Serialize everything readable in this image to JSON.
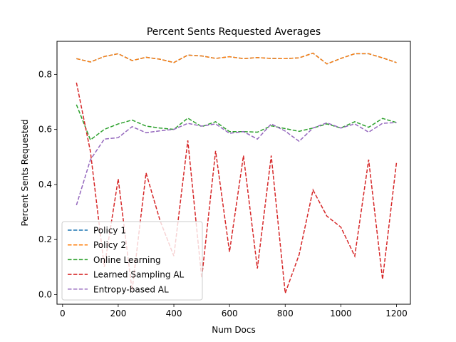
{
  "chart_data": {
    "type": "line",
    "title": "Percent Sents Requested Averages",
    "xlabel": "Num Docs",
    "ylabel": "Percent Sents Requested",
    "xlim": [
      -20,
      1250
    ],
    "ylim": [
      -0.035,
      0.92
    ],
    "xticks": [
      0,
      200,
      400,
      600,
      800,
      1000,
      1200
    ],
    "yticks": [
      0.0,
      0.2,
      0.4,
      0.6,
      0.8
    ],
    "ytick_labels": [
      "0.0",
      "0.2",
      "0.4",
      "0.6",
      "0.8"
    ],
    "grid": false,
    "legend_position": "lower-left",
    "x": [
      50,
      100,
      150,
      200,
      250,
      300,
      350,
      400,
      450,
      500,
      550,
      600,
      650,
      700,
      750,
      800,
      850,
      900,
      950,
      1000,
      1050,
      1100,
      1150,
      1200
    ],
    "series": [
      {
        "name": "Policy 1",
        "color": "#1f77b4",
        "values": [
          0.857,
          0.845,
          0.865,
          0.875,
          0.85,
          0.862,
          0.855,
          0.843,
          0.87,
          0.867,
          0.858,
          0.864,
          0.857,
          0.861,
          0.858,
          0.857,
          0.86,
          0.877,
          0.838,
          0.858,
          0.875,
          0.875,
          0.86,
          0.843
        ]
      },
      {
        "name": "Policy 2",
        "color": "#ff7f0e",
        "values": [
          0.857,
          0.845,
          0.865,
          0.875,
          0.85,
          0.862,
          0.855,
          0.843,
          0.87,
          0.867,
          0.858,
          0.864,
          0.857,
          0.861,
          0.858,
          0.857,
          0.86,
          0.877,
          0.838,
          0.858,
          0.875,
          0.875,
          0.86,
          0.843
        ]
      },
      {
        "name": "Online Learning",
        "color": "#2ca02c",
        "values": [
          0.69,
          0.562,
          0.6,
          0.62,
          0.634,
          0.612,
          0.605,
          0.6,
          0.641,
          0.61,
          0.628,
          0.592,
          0.592,
          0.59,
          0.613,
          0.603,
          0.593,
          0.605,
          0.62,
          0.605,
          0.628,
          0.608,
          0.64,
          0.625
        ]
      },
      {
        "name": "Learned Sampling AL",
        "color": "#d62728",
        "values": [
          0.77,
          0.52,
          0.1,
          0.42,
          0.015,
          0.442,
          0.27,
          0.14,
          0.56,
          0.06,
          0.522,
          0.155,
          0.505,
          0.095,
          0.505,
          0.005,
          0.145,
          0.38,
          0.285,
          0.245,
          0.14,
          0.49,
          0.055,
          0.48
        ]
      },
      {
        "name": "Entropy-based AL",
        "color": "#9467bd",
        "values": [
          0.325,
          0.49,
          0.565,
          0.57,
          0.61,
          0.588,
          0.595,
          0.6,
          0.622,
          0.612,
          0.62,
          0.586,
          0.592,
          0.565,
          0.62,
          0.594,
          0.557,
          0.605,
          0.624,
          0.605,
          0.62,
          0.59,
          0.622,
          0.625
        ]
      }
    ]
  }
}
